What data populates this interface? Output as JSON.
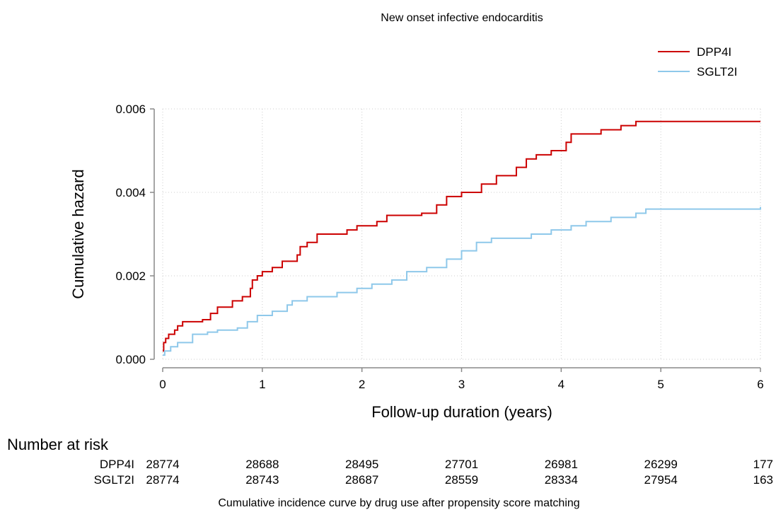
{
  "chart_data": {
    "type": "step",
    "title": "New onset infective endocarditis",
    "xlabel": "Follow-up duration (years)",
    "ylabel": "Cumulative hazard",
    "xlim": [
      0,
      6
    ],
    "ylim": [
      0,
      0.006
    ],
    "xticks": [
      0,
      1,
      2,
      3,
      4,
      5,
      6
    ],
    "yticks": [
      {
        "value": 0,
        "label": "0.000"
      },
      {
        "value": 0.002,
        "label": "0.002"
      },
      {
        "value": 0.004,
        "label": "0.004"
      },
      {
        "value": 0.006,
        "label": "0.006"
      }
    ],
    "grid": true,
    "legend": "top-right",
    "series": [
      {
        "name": "DPP4I",
        "color": "#cc0000",
        "x": [
          0,
          0.01,
          0.03,
          0.06,
          0.12,
          0.15,
          0.2,
          0.4,
          0.48,
          0.55,
          0.7,
          0.8,
          0.88,
          0.9,
          0.95,
          1.0,
          1.1,
          1.2,
          1.35,
          1.38,
          1.45,
          1.55,
          1.85,
          1.95,
          2.15,
          2.25,
          2.6,
          2.75,
          2.85,
          3.0,
          3.2,
          3.35,
          3.55,
          3.65,
          3.75,
          3.9,
          4.05,
          4.1,
          4.4,
          4.6,
          4.75,
          6
        ],
        "values": [
          0.0002,
          0.0004,
          0.0005,
          0.0006,
          0.0007,
          0.0008,
          0.0009,
          0.00095,
          0.0011,
          0.00125,
          0.0014,
          0.0015,
          0.0017,
          0.0019,
          0.002,
          0.0021,
          0.0022,
          0.00235,
          0.0025,
          0.0027,
          0.0028,
          0.003,
          0.0031,
          0.0032,
          0.0033,
          0.00345,
          0.0035,
          0.0037,
          0.0039,
          0.004,
          0.0042,
          0.0044,
          0.0046,
          0.0048,
          0.0049,
          0.005,
          0.0052,
          0.0054,
          0.0055,
          0.0056,
          0.0057,
          0.0057
        ]
      },
      {
        "name": "SGLT2I",
        "color": "#8ec8ea",
        "x": [
          0,
          0.02,
          0.08,
          0.15,
          0.3,
          0.45,
          0.55,
          0.75,
          0.85,
          0.95,
          1.1,
          1.25,
          1.3,
          1.45,
          1.75,
          1.95,
          2.1,
          2.3,
          2.45,
          2.65,
          2.85,
          3.0,
          3.15,
          3.3,
          3.7,
          3.9,
          4.1,
          4.25,
          4.5,
          4.75,
          4.85,
          4.95,
          6
        ],
        "values": [
          0.0001,
          0.0002,
          0.0003,
          0.0004,
          0.0006,
          0.00065,
          0.0007,
          0.00075,
          0.0009,
          0.00105,
          0.00115,
          0.0013,
          0.0014,
          0.0015,
          0.0016,
          0.0017,
          0.0018,
          0.0019,
          0.0021,
          0.0022,
          0.0024,
          0.0026,
          0.0028,
          0.0029,
          0.003,
          0.0031,
          0.0032,
          0.0033,
          0.0034,
          0.0035,
          0.0036,
          0.0036,
          0.00365
        ]
      }
    ],
    "risk_table": {
      "title": "Number at risk",
      "rows": [
        {
          "name": "DPP4I",
          "values": [
            28774,
            28688,
            28495,
            27701,
            26981,
            26299,
            177
          ]
        },
        {
          "name": "SGLT2I",
          "values": [
            28774,
            28743,
            28687,
            28559,
            28334,
            27954,
            163
          ]
        }
      ]
    },
    "caption": "Cumulative incidence curve by drug use after propensity score matching"
  }
}
